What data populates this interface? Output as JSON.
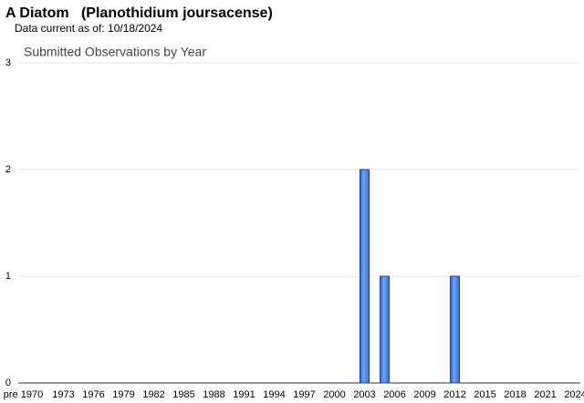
{
  "chart_data": {
    "type": "bar",
    "title": "A Diatom   (Planothidium joursacense)",
    "subtitle": "Data current as of: 10/18/2024",
    "chart_title": "Submitted Observations by Year",
    "categories": [
      "pre 1970",
      null,
      null,
      null,
      "1973",
      null,
      null,
      "1976",
      null,
      null,
      "1979",
      null,
      null,
      "1982",
      null,
      null,
      "1985",
      null,
      null,
      "1988",
      null,
      null,
      "1991",
      null,
      null,
      "1994",
      null,
      null,
      "1997",
      null,
      null,
      "2000",
      null,
      null,
      "2003",
      null,
      null,
      "2006",
      null,
      null,
      "2009",
      null,
      null,
      "2012",
      null,
      null,
      "2015",
      null,
      null,
      "2018",
      null,
      null,
      "2021",
      null,
      null,
      "2024"
    ],
    "values": [
      0,
      0,
      0,
      0,
      0,
      0,
      0,
      0,
      0,
      0,
      0,
      0,
      0,
      0,
      0,
      0,
      0,
      0,
      0,
      0,
      0,
      0,
      0,
      0,
      0,
      0,
      0,
      0,
      0,
      0,
      0,
      0,
      0,
      0,
      2,
      0,
      1,
      0,
      0,
      0,
      0,
      0,
      0,
      1,
      0,
      0,
      0,
      0,
      0,
      0,
      0,
      0,
      0,
      0,
      0,
      0
    ],
    "color": "#4a86e8",
    "ylim": [
      0,
      3
    ],
    "yticks": [
      0,
      1,
      2,
      3
    ],
    "grid": true
  }
}
